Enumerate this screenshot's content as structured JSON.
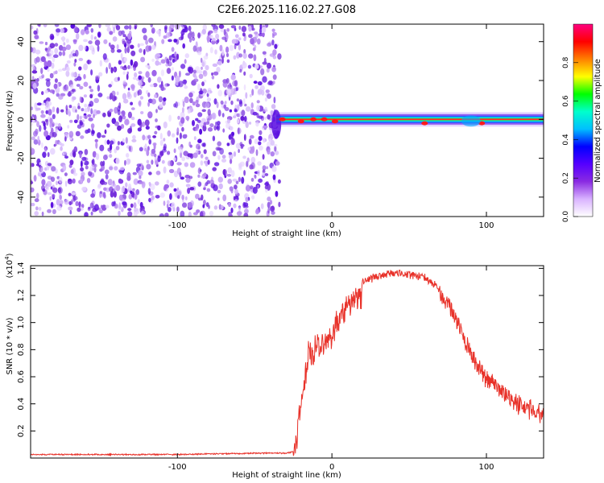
{
  "title": "C2E6.2025.116.02.27.G08",
  "chart_data": [
    {
      "type": "heatmap",
      "xlabel": "Height of straight line (km)",
      "ylabel": "Frequency (Hz)",
      "xlim": [
        -195,
        137
      ],
      "ylim": [
        -50,
        49
      ],
      "xticks": [
        -100,
        0,
        100
      ],
      "yticks": [
        -40,
        -20,
        0,
        20,
        40
      ],
      "noise_region_x": [
        -195,
        -37
      ],
      "signal_line": {
        "freq_hz": 0,
        "x_start": -37,
        "x_end": 137,
        "peaks": [
          {
            "x": -32,
            "y": 0
          },
          {
            "x": -20,
            "y": -1
          },
          {
            "x": -12,
            "y": 0
          },
          {
            "x": -5,
            "y": 0
          },
          {
            "x": 2,
            "y": -1
          },
          {
            "x": 60,
            "y": -2
          },
          {
            "x": 97,
            "y": -2
          }
        ]
      },
      "colorbar": {
        "label": "Normalized spectral amplitude",
        "range": [
          0,
          1
        ],
        "ticks": [
          0.0,
          0.2,
          0.4,
          0.6,
          0.8
        ],
        "colors": [
          "#ffffff",
          "#d9b3ff",
          "#8a2be2",
          "#5500ff",
          "#0000ff",
          "#00bfff",
          "#00ffcc",
          "#00ff00",
          "#ffff00",
          "#ff8000",
          "#ff0000",
          "#ff0080"
        ]
      }
    },
    {
      "type": "line",
      "xlabel": "Height of straight line (km)",
      "ylabel": "SNR (10 * v/v)",
      "yunit_label": "(x10",
      "yunit_exp": "4",
      "yunit_close": ")",
      "xlim": [
        -195,
        137
      ],
      "ylim": [
        0,
        1.42
      ],
      "xticks": [
        -100,
        0,
        100
      ],
      "yticks": [
        0.2,
        0.4,
        0.6,
        0.8,
        1.0,
        1.2,
        1.4
      ],
      "color": "#e8322a",
      "x": [
        -195,
        -150,
        -100,
        -50,
        -30,
        -25,
        -23,
        -20,
        -17,
        -15,
        -12,
        -10,
        -7,
        -5,
        -2,
        0,
        5,
        10,
        15,
        20,
        25,
        30,
        35,
        40,
        45,
        50,
        55,
        60,
        65,
        70,
        75,
        80,
        85,
        90,
        95,
        100,
        105,
        110,
        115,
        120,
        125,
        130,
        137
      ],
      "y": [
        0.03,
        0.03,
        0.03,
        0.04,
        0.04,
        0.05,
        0.25,
        0.5,
        0.7,
        0.9,
        0.85,
        0.92,
        0.95,
        0.9,
        1.0,
        1.0,
        1.1,
        1.2,
        1.27,
        1.32,
        1.35,
        1.37,
        1.38,
        1.39,
        1.39,
        1.38,
        1.37,
        1.36,
        1.32,
        1.27,
        1.2,
        1.08,
        0.95,
        0.82,
        0.72,
        0.65,
        0.6,
        0.55,
        0.5,
        0.46,
        0.43,
        0.41,
        0.39
      ]
    }
  ]
}
